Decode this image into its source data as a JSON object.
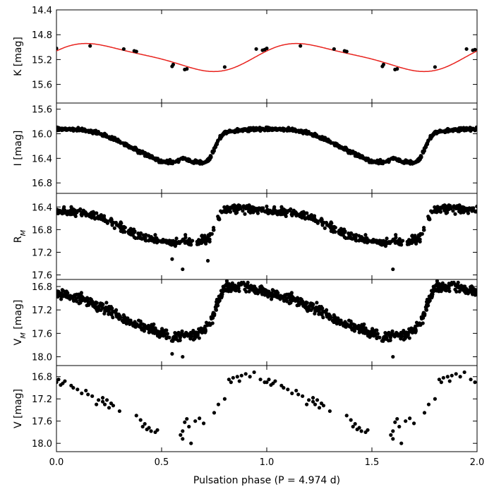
{
  "chart_data": {
    "type": "scatter",
    "xlabel": "Pulsation phase (P = 4.974 d)",
    "xlim": [
      0.0,
      2.0
    ],
    "xticks": [
      0.0,
      0.5,
      1.0,
      1.5,
      2.0
    ],
    "xtick_labels": [
      "0.0",
      "0.5",
      "1.0",
      "1.5",
      "2.0"
    ],
    "period": 4.974,
    "panels": [
      {
        "id": "K",
        "ylabel": "K [mag]",
        "ylabel_sub": "",
        "ylabel_unit": "",
        "ylim": [
          14.4,
          15.9
        ],
        "inverted": true,
        "yticks": [
          14.4,
          14.8,
          15.2,
          15.6
        ],
        "ytick_labels": [
          "14.4",
          "14.8",
          "15.2",
          "15.6"
        ],
        "fit_curve": {
          "color": "#e8211c",
          "mean": 15.16,
          "a1": 0.21,
          "phi1": 0.0,
          "a2": 0.045,
          "phi2": 2.4
        },
        "phases": [
          0.0,
          0.16,
          0.32,
          0.37,
          0.38,
          0.55,
          0.555,
          0.61,
          0.62,
          0.8,
          0.95,
          0.98,
          0.99
        ],
        "mags": [
          15.02,
          14.98,
          15.03,
          15.06,
          15.07,
          15.31,
          15.28,
          15.36,
          15.35,
          15.32,
          15.03,
          15.05,
          15.04
        ]
      },
      {
        "id": "I",
        "ylabel": "I [mag]",
        "ylabel_sub": "",
        "ylabel_unit": "",
        "ylim": [
          15.5,
          16.97
        ],
        "inverted": true,
        "yticks": [
          15.6,
          16.0,
          16.4,
          16.8
        ],
        "ytick_labels": [
          "15.6",
          "16.0",
          "16.4",
          "16.8"
        ],
        "template": {
          "phases": [
            0.0,
            0.1,
            0.2,
            0.3,
            0.4,
            0.5,
            0.55,
            0.6,
            0.65,
            0.7,
            0.73,
            0.77,
            0.8,
            0.9,
            1.0
          ],
          "mags": [
            15.92,
            15.93,
            15.98,
            16.13,
            16.3,
            16.45,
            16.47,
            16.4,
            16.45,
            16.47,
            16.4,
            16.1,
            15.98,
            15.93,
            15.92
          ]
        },
        "n_points": 560,
        "scatter": 0.02,
        "outliers": []
      },
      {
        "id": "R",
        "ylabel": "R",
        "ylabel_sub": "M",
        "ylabel_unit": "  ",
        "ylim": [
          16.16,
          17.68
        ],
        "inverted": true,
        "yticks": [
          16.4,
          16.8,
          17.2,
          17.6
        ],
        "ytick_labels": [
          "16.4",
          "16.8",
          "17.2",
          "17.6"
        ],
        "template": {
          "phases": [
            0.0,
            0.1,
            0.2,
            0.3,
            0.4,
            0.5,
            0.55,
            0.6,
            0.65,
            0.7,
            0.73,
            0.77,
            0.8,
            0.9,
            1.0
          ],
          "mags": [
            16.47,
            16.5,
            16.58,
            16.75,
            16.92,
            17.0,
            17.05,
            17.0,
            17.02,
            16.98,
            16.93,
            16.6,
            16.45,
            16.43,
            16.47
          ]
        },
        "n_points": 400,
        "scatter": 0.05,
        "outliers": [
          [
            0.6,
            17.5
          ],
          [
            1.6,
            17.5
          ],
          [
            0.72,
            17.35
          ],
          [
            0.55,
            17.32
          ]
        ]
      },
      {
        "id": "VM",
        "ylabel": "V",
        "ylabel_sub": "M",
        "ylabel_unit": " [mag]",
        "ylim": [
          16.68,
          18.15
        ],
        "inverted": true,
        "yticks": [
          16.8,
          17.2,
          17.6,
          18.0
        ],
        "ytick_labels": [
          "16.8",
          "17.2",
          "17.6",
          "18.0"
        ],
        "template": {
          "phases": [
            0.0,
            0.1,
            0.2,
            0.3,
            0.4,
            0.5,
            0.55,
            0.6,
            0.65,
            0.7,
            0.73,
            0.77,
            0.8,
            0.9,
            1.0
          ],
          "mags": [
            16.9,
            17.0,
            17.12,
            17.3,
            17.48,
            17.6,
            17.68,
            17.6,
            17.65,
            17.55,
            17.45,
            17.05,
            16.82,
            16.8,
            16.9
          ]
        },
        "n_points": 480,
        "scatter": 0.06,
        "outliers": [
          [
            0.6,
            18.0
          ],
          [
            1.6,
            18.0
          ],
          [
            0.55,
            17.95
          ]
        ]
      },
      {
        "id": "V",
        "ylabel": "V [mag]",
        "ylabel_sub": "",
        "ylabel_unit": "",
        "ylim": [
          16.6,
          18.15
        ],
        "inverted": true,
        "yticks": [
          16.8,
          17.2,
          17.6,
          18.0
        ],
        "ytick_labels": [
          "16.8",
          "17.2",
          "17.6",
          "18.0"
        ],
        "phases": [
          0.0,
          0.01,
          0.02,
          0.03,
          0.04,
          0.07,
          0.08,
          0.1,
          0.12,
          0.14,
          0.15,
          0.17,
          0.19,
          0.2,
          0.22,
          0.22,
          0.23,
          0.24,
          0.25,
          0.26,
          0.27,
          0.3,
          0.38,
          0.4,
          0.41,
          0.42,
          0.43,
          0.44,
          0.45,
          0.47,
          0.48,
          0.59,
          0.6,
          0.6,
          0.61,
          0.62,
          0.63,
          0.64,
          0.66,
          0.68,
          0.7,
          0.75,
          0.77,
          0.8,
          0.82,
          0.83,
          0.84,
          0.86,
          0.87,
          0.88,
          0.9,
          0.92,
          0.94,
          0.97,
          0.99
        ],
        "mags": [
          16.9,
          16.85,
          16.95,
          16.92,
          16.88,
          16.96,
          17.0,
          17.03,
          17.1,
          17.05,
          17.12,
          17.15,
          17.3,
          17.22,
          17.25,
          17.18,
          17.3,
          17.22,
          17.36,
          17.28,
          17.32,
          17.42,
          17.5,
          17.58,
          17.7,
          17.65,
          17.75,
          17.72,
          17.78,
          17.8,
          17.76,
          17.85,
          17.78,
          17.92,
          17.62,
          17.56,
          17.7,
          18.0,
          17.6,
          17.55,
          17.64,
          17.45,
          17.3,
          17.2,
          16.85,
          16.9,
          16.82,
          16.8,
          16.88,
          16.78,
          16.75,
          16.8,
          16.72,
          16.85,
          16.9
        ]
      }
    ]
  }
}
